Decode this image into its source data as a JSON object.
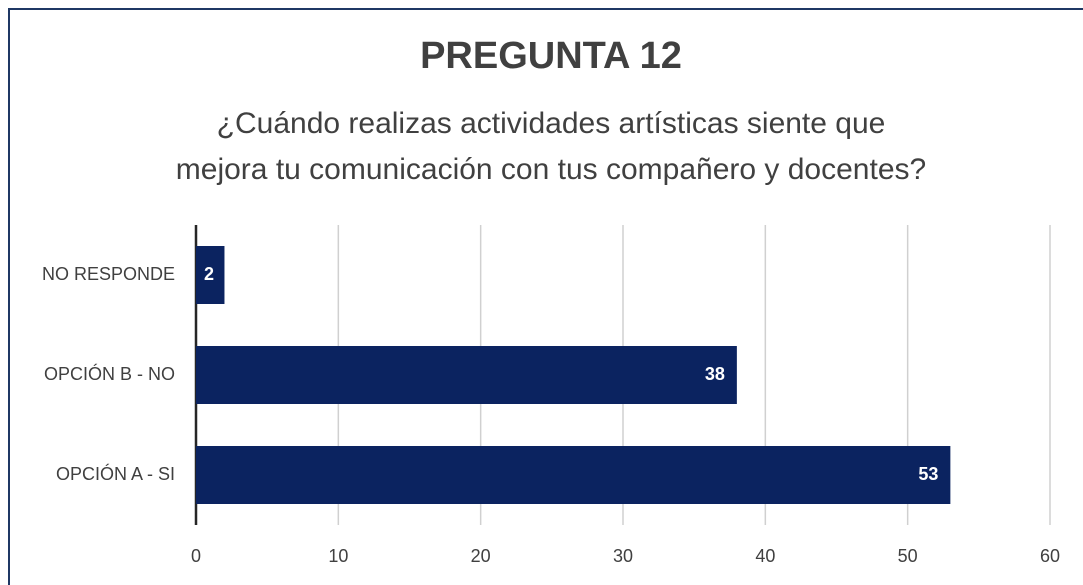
{
  "chart_data": {
    "type": "bar",
    "orientation": "horizontal",
    "title": "PREGUNTA 12",
    "subtitle": [
      "¿Cuándo realizas actividades artísticas siente que",
      "mejora tu comunicación con tus compañero y docentes?"
    ],
    "categories": [
      "NO RESPONDE",
      "OPCIÓN B - NO",
      "OPCIÓN A - SI"
    ],
    "values": [
      2,
      38,
      53
    ],
    "color": "#0b2360",
    "xlim": [
      0,
      60
    ],
    "xticks": [
      0,
      10,
      20,
      30,
      40,
      50,
      60
    ],
    "grid": true
  }
}
